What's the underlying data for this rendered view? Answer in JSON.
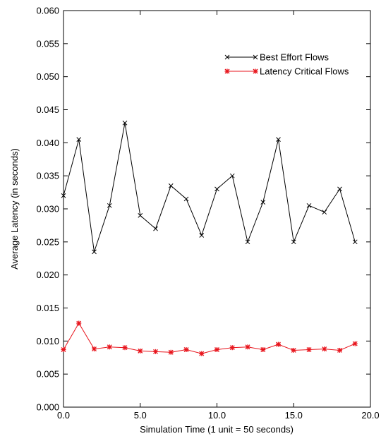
{
  "chart_data": {
    "type": "line",
    "title": "",
    "xlabel": "Simulation Time (1 unit = 50 seconds)",
    "ylabel": "Average Latency (in seconds)",
    "xlim": [
      0,
      20
    ],
    "ylim": [
      0,
      0.06
    ],
    "xticks": [
      0,
      5,
      10,
      15,
      20
    ],
    "xtick_labels": [
      "0.0",
      "5.0",
      "10.0",
      "15.0",
      "20.0"
    ],
    "yticks": [
      0,
      0.005,
      0.01,
      0.015,
      0.02,
      0.025,
      0.03,
      0.035,
      0.04,
      0.045,
      0.05,
      0.055,
      0.06
    ],
    "ytick_labels": [
      "0.000",
      "0.005",
      "0.010",
      "0.015",
      "0.020",
      "0.025",
      "0.030",
      "0.035",
      "0.040",
      "0.045",
      "0.050",
      "0.055",
      "0.060"
    ],
    "grid": false,
    "legend_position": "top-right",
    "x": [
      0,
      1,
      2,
      3,
      4,
      5,
      6,
      7,
      8,
      9,
      10,
      11,
      12,
      13,
      14,
      15,
      16,
      17,
      18,
      19
    ],
    "series": [
      {
        "name": "Best Effort Flows",
        "color": "#000000",
        "marker": "x",
        "values": [
          0.032,
          0.0405,
          0.0235,
          0.0305,
          0.043,
          0.029,
          0.027,
          0.0335,
          0.0315,
          0.026,
          0.033,
          0.035,
          0.025,
          0.031,
          0.0405,
          0.025,
          0.0305,
          0.0295,
          0.033,
          0.025
        ]
      },
      {
        "name": "Latency Critical Flows",
        "color": "#e8141c",
        "marker": "asterisk",
        "values": [
          0.0087,
          0.0127,
          0.0088,
          0.0091,
          0.009,
          0.0085,
          0.0084,
          0.0083,
          0.0087,
          0.0081,
          0.0087,
          0.009,
          0.0091,
          0.0087,
          0.0095,
          0.0086,
          0.0087,
          0.0088,
          0.0086,
          0.0096
        ]
      }
    ]
  }
}
